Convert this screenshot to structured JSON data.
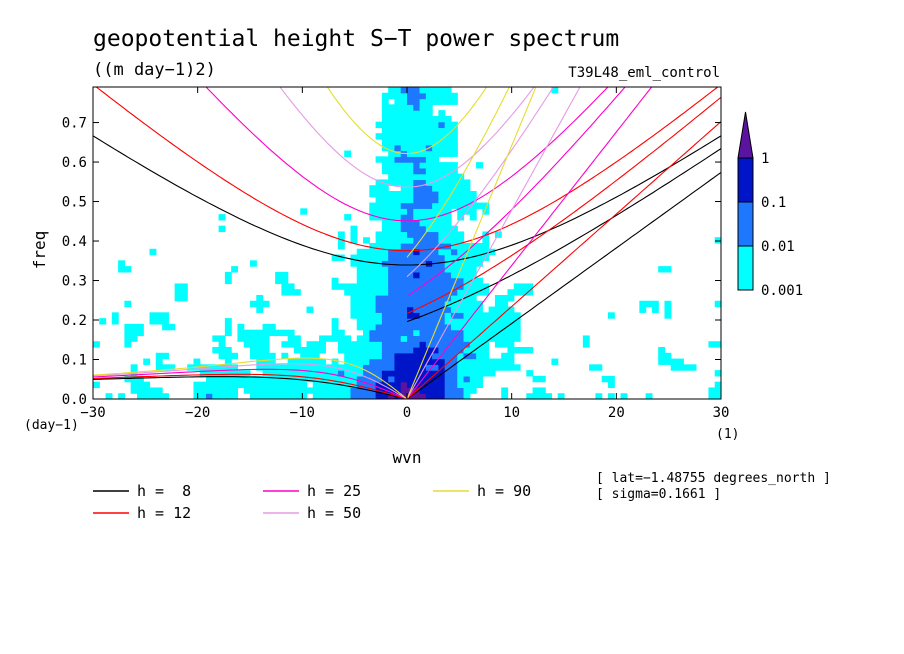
{
  "chart_data": {
    "type": "heatmap",
    "title": "geopotential height S−T power spectrum",
    "units": "((m day−1)2)",
    "experiment": "T39L48_eml_control",
    "xlabel": "wvn",
    "ylabel": "freq",
    "x_unit": "(1)",
    "y_unit": "(day−1)",
    "xlim": [
      -30,
      30
    ],
    "ylim": [
      0,
      0.79
    ],
    "x_ticks": [
      -30,
      -20,
      -10,
      0,
      10,
      20,
      30
    ],
    "y_ticks": [
      0.0,
      0.1,
      0.2,
      0.3,
      0.4,
      0.5,
      0.6,
      0.7
    ],
    "x_tick_labels": [
      "−30",
      "−20",
      "−10",
      "0",
      "10",
      "20",
      "30"
    ],
    "y_tick_labels": [
      "0.0",
      "0.1",
      "0.2",
      "0.3",
      "0.4",
      "0.5",
      "0.6",
      "0.7"
    ],
    "colorbar": {
      "levels": [
        "0.001",
        "0.01",
        "0.1",
        "1"
      ],
      "colors": [
        "#00ffff",
        "#1e78ff",
        "#0014c8",
        "#5a14a0"
      ],
      "placement": "right"
    },
    "dispersion_curves": [
      {
        "name": "h =  8",
        "h": 8,
        "color": "#000000"
      },
      {
        "name": "h = 12",
        "h": 12,
        "color": "#ff0000"
      },
      {
        "name": "h = 25",
        "h": 25,
        "color": "#ff00c8"
      },
      {
        "name": "h = 50",
        "h": 50,
        "color": "#e69be6"
      },
      {
        "name": "h = 90",
        "h": 90,
        "color": "#e6dc32"
      }
    ],
    "annotations": [
      "[ lat=−1.48755 degrees_north ]",
      "[ sigma=0.1661 ]"
    ]
  }
}
